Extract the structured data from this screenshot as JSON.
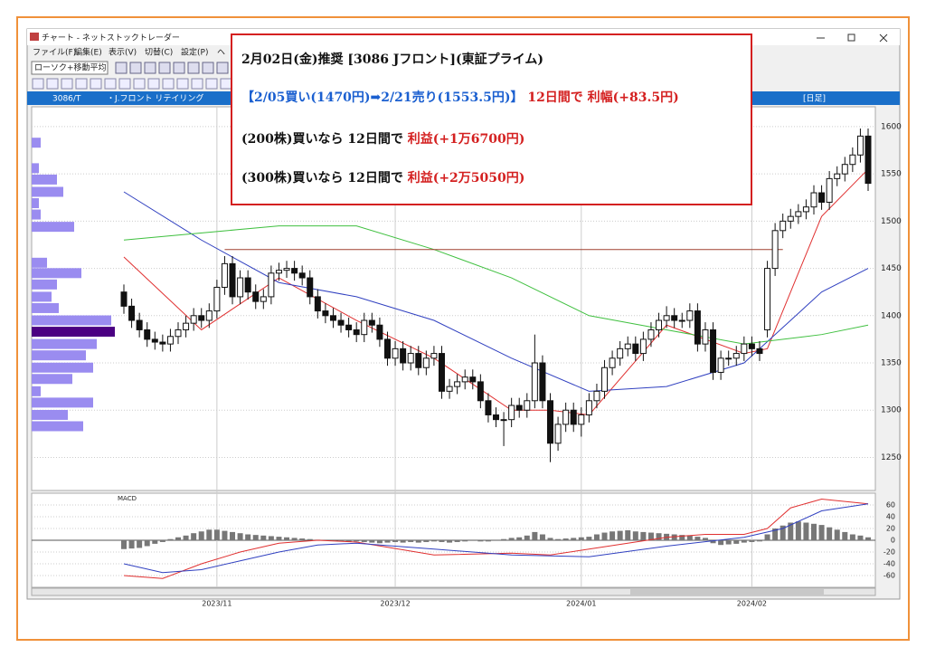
{
  "window": {
    "title": "チャート - ネットストックトレーダー",
    "menu": [
      "ファイル(F)",
      "編集(E)",
      "表示(V)",
      "切替(C)",
      "設定(P)",
      "ヘ"
    ],
    "dropdown": "ローソク+移動平均",
    "code": "3086/T",
    "name": "・J.フロント リテイリング",
    "period": "[日足]"
  },
  "overlay": {
    "line1": "2月02日(金)推奨 [3086 Jフロント](東証プライム)",
    "line2a": "【2/05買い(1470円)➡2/21売り(1553.5円)】",
    "line2b": "12日間で 利幅(+83.5円)",
    "line3a": "(200株)買いなら 12日間で",
    "line3b": "利益(+1万6700円)",
    "line4a": "(300株)買いなら 12日間で",
    "line4b": "利益(+2万5050円)"
  },
  "chart_data": {
    "type": "candlestick",
    "open": [
      1425,
      1410,
      1395,
      1385,
      1375,
      1372,
      1370,
      1378,
      1385,
      1392,
      1400,
      1395,
      1405,
      1430,
      1455,
      1420,
      1440,
      1425,
      1415,
      1420,
      1445,
      1448,
      1450,
      1445,
      1440,
      1420,
      1405,
      1400,
      1395,
      1390,
      1385,
      1380,
      1395,
      1390,
      1375,
      1355,
      1365,
      1350,
      1360,
      1345,
      1355,
      1360,
      1320,
      1325,
      1330,
      1335,
      1330,
      1310,
      1295,
      1290,
      1290,
      1305,
      1300,
      1310,
      1350,
      1310,
      1265,
      1285,
      1300,
      1285,
      1295,
      1310,
      1320,
      1345,
      1355,
      1365,
      1370,
      1360,
      1375,
      1385,
      1395,
      1400,
      1395,
      1395,
      1405,
      1370,
      1385,
      1340,
      1355,
      1355,
      1360,
      1370,
      1365,
      1385,
      1450,
      1490,
      1500,
      1505,
      1510,
      1515,
      1530,
      1520,
      1545,
      1550,
      1560,
      1570,
      1590
    ],
    "high": [
      1433,
      1418,
      1403,
      1393,
      1383,
      1380,
      1386,
      1393,
      1400,
      1408,
      1408,
      1413,
      1438,
      1463,
      1463,
      1448,
      1448,
      1433,
      1428,
      1453,
      1456,
      1458,
      1458,
      1453,
      1448,
      1428,
      1413,
      1408,
      1403,
      1398,
      1393,
      1403,
      1403,
      1398,
      1383,
      1373,
      1373,
      1368,
      1368,
      1363,
      1368,
      1368,
      1333,
      1338,
      1343,
      1343,
      1338,
      1318,
      1303,
      1298,
      1313,
      1313,
      1318,
      1380,
      1358,
      1318,
      1293,
      1308,
      1308,
      1303,
      1318,
      1328,
      1353,
      1363,
      1373,
      1378,
      1378,
      1383,
      1393,
      1403,
      1410,
      1408,
      1403,
      1413,
      1413,
      1393,
      1393,
      1363,
      1363,
      1368,
      1378,
      1378,
      1373,
      1458,
      1498,
      1508,
      1513,
      1518,
      1523,
      1538,
      1538,
      1553,
      1558,
      1568,
      1578,
      1598,
      1598
    ],
    "low": [
      1402,
      1387,
      1377,
      1367,
      1364,
      1362,
      1362,
      1370,
      1377,
      1384,
      1387,
      1387,
      1397,
      1422,
      1412,
      1412,
      1417,
      1407,
      1407,
      1412,
      1437,
      1440,
      1437,
      1432,
      1412,
      1397,
      1392,
      1387,
      1382,
      1377,
      1372,
      1372,
      1382,
      1367,
      1347,
      1347,
      1342,
      1342,
      1337,
      1337,
      1347,
      1312,
      1312,
      1317,
      1322,
      1322,
      1302,
      1287,
      1282,
      1262,
      1282,
      1292,
      1292,
      1302,
      1302,
      1245,
      1257,
      1277,
      1277,
      1272,
      1287,
      1302,
      1312,
      1337,
      1347,
      1357,
      1352,
      1352,
      1367,
      1377,
      1387,
      1387,
      1387,
      1387,
      1362,
      1362,
      1332,
      1332,
      1347,
      1347,
      1352,
      1357,
      1352,
      1377,
      1442,
      1482,
      1492,
      1497,
      1502,
      1507,
      1512,
      1512,
      1537,
      1542,
      1552,
      1562,
      1532
    ],
    "close": [
      1410,
      1395,
      1385,
      1375,
      1372,
      1370,
      1378,
      1385,
      1392,
      1400,
      1395,
      1405,
      1430,
      1455,
      1420,
      1440,
      1425,
      1415,
      1420,
      1445,
      1448,
      1450,
      1445,
      1440,
      1420,
      1405,
      1400,
      1395,
      1390,
      1385,
      1380,
      1395,
      1390,
      1375,
      1355,
      1365,
      1350,
      1360,
      1345,
      1355,
      1360,
      1320,
      1325,
      1330,
      1335,
      1330,
      1310,
      1295,
      1290,
      1290,
      1305,
      1300,
      1310,
      1350,
      1310,
      1265,
      1285,
      1300,
      1285,
      1295,
      1310,
      1320,
      1345,
      1355,
      1365,
      1370,
      1360,
      1375,
      1385,
      1395,
      1400,
      1395,
      1395,
      1405,
      1370,
      1385,
      1340,
      1355,
      1355,
      1360,
      1370,
      1365,
      1360,
      1450,
      1490,
      1500,
      1505,
      1510,
      1515,
      1530,
      1520,
      1545,
      1550,
      1560,
      1570,
      1590,
      1540
    ],
    "series": [
      {
        "color": "#e03030",
        "x": [
          0,
          10,
          20,
          30,
          40,
          50,
          55,
          60,
          70,
          80,
          83,
          90,
          96
        ],
        "values": [
          1462,
          1385,
          1440,
          1395,
          1355,
          1300,
          1300,
          1295,
          1390,
          1360,
          1365,
          1505,
          1555
        ]
      },
      {
        "color": "#3040c0",
        "x": [
          0,
          10,
          20,
          30,
          40,
          50,
          60,
          70,
          80,
          90,
          96
        ],
        "values": [
          1531,
          1480,
          1435,
          1420,
          1395,
          1355,
          1320,
          1325,
          1350,
          1425,
          1450
        ]
      },
      {
        "color": "#40c040",
        "x": [
          0,
          20,
          30,
          40,
          50,
          60,
          70,
          80,
          90,
          96
        ],
        "values": [
          1480,
          1495,
          1495,
          1470,
          1440,
          1400,
          1385,
          1370,
          1380,
          1390
        ]
      }
    ],
    "hline": {
      "value": 1470,
      "from": 13,
      "to": 85,
      "color": "#a04030"
    },
    "ylim": [
      1215,
      1621
    ],
    "yticks": [
      1600,
      1550,
      1500,
      1450,
      1400,
      1350,
      1300,
      1250
    ],
    "xlim": [
      0,
      96
    ],
    "xticks": [
      {
        "value": 12,
        "label": "2023/11"
      },
      {
        "value": 35,
        "label": "2023/12"
      },
      {
        "value": 59,
        "label": "2024/01"
      },
      {
        "value": 81,
        "label": "2024/02"
      }
    ],
    "profile": {
      "prices": [
        1583,
        1556,
        1544,
        1531,
        1519,
        1507,
        1494,
        1456,
        1445,
        1433,
        1420,
        1408,
        1395,
        1383,
        1370,
        1358,
        1345,
        1333,
        1320,
        1308,
        1295,
        1283
      ],
      "values": [
        10,
        8,
        28,
        35,
        8,
        10,
        47,
        17,
        55,
        28,
        22,
        30,
        88,
        92,
        72,
        60,
        68,
        45,
        10,
        68,
        40,
        57
      ],
      "highlight": 13,
      "color": "#9a8cf0",
      "highlight_color": "#4b0082"
    },
    "macd": {
      "title": "MACD",
      "ylim": [
        -80,
        80
      ],
      "yticks": [
        60,
        40,
        20,
        0,
        -20,
        -40,
        -60
      ],
      "histogram": [
        -15,
        -14,
        -13,
        -10,
        -6,
        -3,
        2,
        5,
        8,
        12,
        15,
        18,
        18,
        16,
        14,
        12,
        10,
        9,
        8,
        7,
        6,
        5,
        4,
        3,
        2,
        1,
        0,
        -1,
        -2,
        -3,
        -2,
        -3,
        -4,
        -5,
        -4,
        -3,
        -4,
        -3,
        -4,
        -3,
        -2,
        -3,
        -4,
        -3,
        -2,
        -1,
        -2,
        -2,
        0,
        2,
        4,
        5,
        8,
        14,
        10,
        4,
        2,
        3,
        4,
        5,
        6,
        10,
        13,
        15,
        16,
        17,
        15,
        14,
        13,
        12,
        11,
        10,
        9,
        8,
        6,
        4,
        -5,
        -8,
        -7,
        -6,
        -4,
        -3,
        -2,
        10,
        20,
        25,
        30,
        32,
        30,
        28,
        26,
        22,
        18,
        14,
        10,
        8,
        5
      ],
      "series": [
        {
          "color": "#e03030",
          "x": [
            0,
            5,
            10,
            15,
            20,
            25,
            30,
            40,
            50,
            55,
            60,
            70,
            75,
            80,
            83,
            86,
            90,
            96
          ],
          "values": [
            -60,
            -65,
            -40,
            -20,
            -5,
            0,
            -3,
            -25,
            -22,
            -25,
            -15,
            5,
            10,
            10,
            20,
            55,
            70,
            62
          ]
        },
        {
          "color": "#3040c0",
          "x": [
            0,
            5,
            10,
            15,
            20,
            25,
            30,
            40,
            50,
            60,
            70,
            80,
            85,
            90,
            96
          ],
          "values": [
            -40,
            -55,
            -50,
            -35,
            -20,
            -8,
            -5,
            -15,
            -25,
            -28,
            -10,
            5,
            20,
            50,
            62
          ]
        }
      ]
    }
  }
}
